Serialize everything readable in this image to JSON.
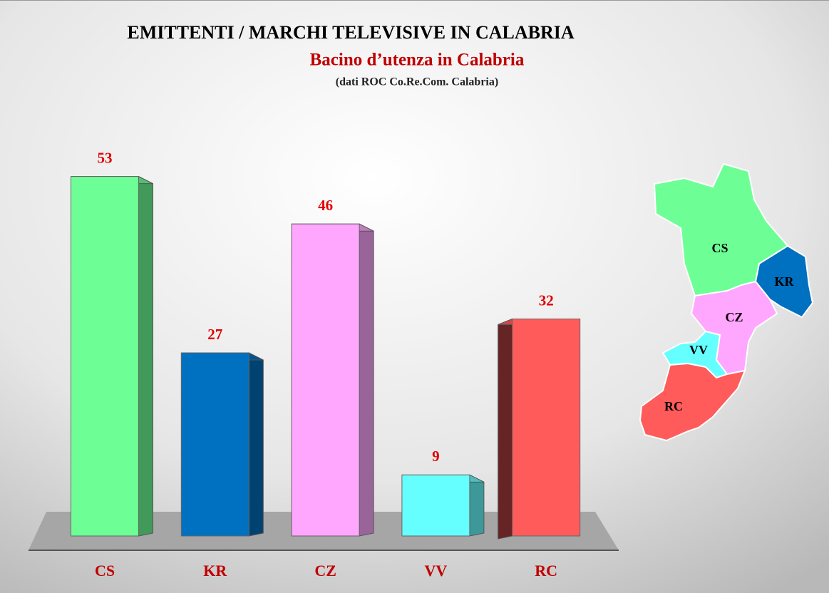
{
  "chart_data": {
    "type": "bar",
    "title": "EMITTENTI  / MARCHI TELEVISIVE  IN CALABRIA",
    "subtitle": "Bacino d’utenza in Calabria",
    "note": "(dati ROC Co.Re.Com. Calabria)",
    "categories": [
      "CS",
      "KR",
      "CZ",
      "VV",
      "RC"
    ],
    "values": [
      53,
      27,
      46,
      9,
      32
    ],
    "colors": [
      "#6dff96",
      "#0070c0",
      "#ffa6ff",
      "#66ffff",
      "#ff5b5b"
    ],
    "ylim": [
      0,
      60
    ]
  }
}
